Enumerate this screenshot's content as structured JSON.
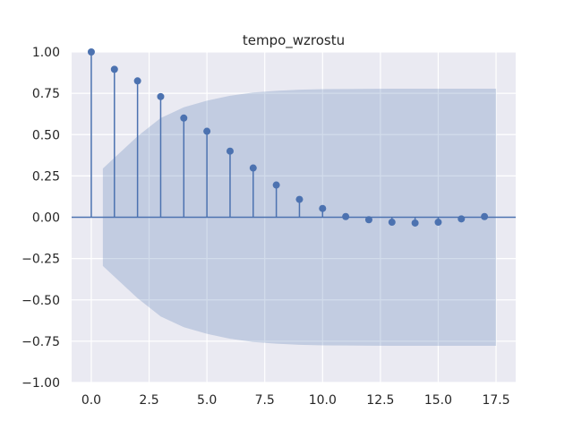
{
  "chart_data": {
    "type": "stem",
    "title": "tempo_wzrostu",
    "xlabel": "",
    "ylabel": "",
    "xlim": [
      -0.85,
      18.35
    ],
    "ylim": [
      -1.0,
      1.0
    ],
    "xticks": [
      0,
      2.5,
      5,
      7.5,
      10,
      12.5,
      15,
      17.5
    ],
    "xtick_labels": [
      "0.0",
      "2.5",
      "5.0",
      "7.5",
      "10.0",
      "12.5",
      "15.0",
      "17.5"
    ],
    "yticks": [
      -1.0,
      -0.75,
      -0.5,
      -0.25,
      0,
      0.25,
      0.5,
      0.75,
      1.0
    ],
    "ytick_labels": [
      "−1.00",
      "−0.75",
      "−0.50",
      "−0.25",
      "0.00",
      "0.25",
      "0.50",
      "0.75",
      "1.00"
    ],
    "grid": true,
    "series": [
      {
        "x": [
          0,
          1,
          2,
          3,
          4,
          5,
          6,
          7,
          8,
          9,
          10,
          11,
          12,
          13,
          14,
          15,
          16,
          17
        ],
        "values": [
          1.0,
          0.895,
          0.825,
          0.73,
          0.6,
          0.52,
          0.4,
          0.298,
          0.195,
          0.108,
          0.053,
          0.004,
          -0.015,
          -0.03,
          -0.035,
          -0.03,
          -0.01,
          0.004
        ]
      }
    ],
    "confidence_band": {
      "x": [
        0.5,
        1,
        2,
        3,
        4,
        5,
        6,
        7,
        8,
        9,
        10,
        11,
        12,
        13,
        14,
        15,
        16,
        17,
        17.5
      ],
      "upper": [
        0.295,
        0.36,
        0.49,
        0.6,
        0.665,
        0.705,
        0.735,
        0.755,
        0.765,
        0.772,
        0.775,
        0.776,
        0.777,
        0.778,
        0.778,
        0.778,
        0.778,
        0.778,
        0.778
      ]
    },
    "colors": {
      "stem": "#4c72b0",
      "band": "#4c72b0",
      "plot_background": "#eaeaf2",
      "grid": "#ffffff",
      "text": "#262626"
    }
  }
}
